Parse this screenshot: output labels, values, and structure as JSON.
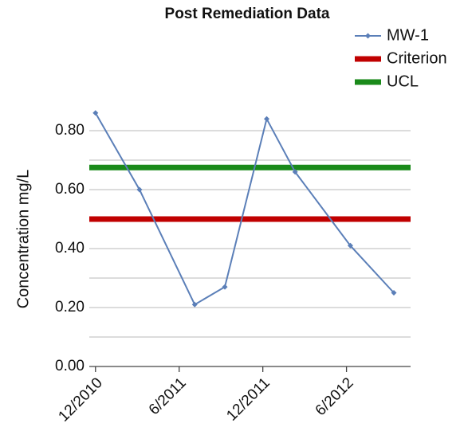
{
  "chart_data": {
    "type": "line",
    "title": "Post Remediation Data",
    "y_label": "Concentration mg/L",
    "x": [
      2010.917,
      2011.18,
      2011.51,
      2011.69,
      2011.94,
      2012.11,
      2012.44,
      2012.7
    ],
    "series": [
      {
        "name": "MW-1",
        "color": "#5b7fb8",
        "values": [
          0.86,
          0.6,
          0.21,
          0.27,
          0.84,
          0.66,
          0.41,
          0.25
        ]
      }
    ],
    "reference_lines": [
      {
        "name": "Criterion",
        "color": "#c00000",
        "value": 0.5
      },
      {
        "name": "UCL",
        "color": "#1a8a1a",
        "value": 0.675
      }
    ],
    "xlim": [
      2010.88,
      2012.8
    ],
    "xticks": [
      {
        "value": 2010.917,
        "label": "12/2010"
      },
      {
        "value": 2011.417,
        "label": "6/2011"
      },
      {
        "value": 2011.917,
        "label": "12/2011"
      },
      {
        "value": 2012.417,
        "label": "6/2012"
      }
    ],
    "ylim": [
      0,
      0.9
    ],
    "yticks": [
      {
        "value": 0,
        "label": "0.00"
      },
      {
        "value": 0.2,
        "label": "0.20"
      },
      {
        "value": 0.4,
        "label": "0.40"
      },
      {
        "value": 0.6,
        "label": "0.60"
      },
      {
        "value": 0.8,
        "label": "0.80"
      }
    ],
    "minor_yticks": [
      0.1,
      0.3,
      0.5,
      0.7
    ],
    "grid": true,
    "legend": "top-right"
  }
}
